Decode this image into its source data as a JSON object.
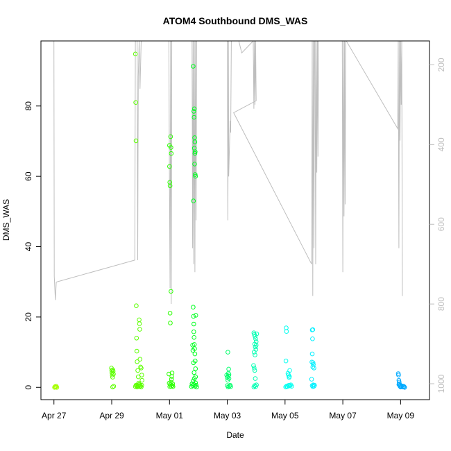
{
  "chart_data": {
    "type": "scatter",
    "title": "ATOM4 Southbound DMS_WAS",
    "xlabel": "Date",
    "ylabel": "DMS_WAS",
    "x_ticks": [
      {
        "label": "Apr 27",
        "day": 0
      },
      {
        "label": "Apr 29",
        "day": 2
      },
      {
        "label": "May 01",
        "day": 4
      },
      {
        "label": "May 03",
        "day": 6
      },
      {
        "label": "May 05",
        "day": 8
      },
      {
        "label": "May 07",
        "day": 10
      },
      {
        "label": "May 09",
        "day": 12
      }
    ],
    "xlim": [
      -0.45,
      13.0
    ],
    "ylim": [
      -3.5,
      98.5
    ],
    "y_ticks": [
      0,
      20,
      40,
      60,
      80
    ],
    "y2_ticks": [
      200,
      400,
      600,
      800,
      1000
    ],
    "y2lim": [
      1040,
      140
    ],
    "marker": "open-circle",
    "series": [
      {
        "color": "#a6ff00",
        "points": [
          [
            0.02,
            0.0
          ],
          [
            0.04,
            0.2
          ],
          [
            0.06,
            0.1
          ],
          [
            0.08,
            0.3
          ],
          [
            0.1,
            0.0
          ]
        ]
      },
      {
        "color": "#5cff00",
        "points": [
          [
            1.99,
            5.5
          ],
          [
            2.0,
            4.8
          ],
          [
            2.01,
            4.2
          ],
          [
            2.02,
            3.5
          ],
          [
            2.03,
            2.9
          ],
          [
            2.04,
            5.0
          ],
          [
            2.05,
            4.6
          ],
          [
            2.06,
            3.8
          ],
          [
            2.03,
            0.1
          ],
          [
            2.07,
            0.3
          ],
          [
            2.82,
            0.2
          ],
          [
            2.84,
            0.6
          ],
          [
            2.86,
            0.4
          ],
          [
            2.88,
            0.1
          ],
          [
            2.9,
            0.5
          ],
          [
            2.92,
            0.3
          ],
          [
            2.94,
            0.8
          ],
          [
            2.96,
            0.2
          ],
          [
            2.98,
            0.7
          ],
          [
            3.0,
            0.4
          ],
          [
            3.02,
            0.1
          ],
          [
            3.04,
            0.6
          ],
          [
            2.82,
            94.8
          ],
          [
            2.83,
            81.0
          ],
          [
            2.84,
            70.1
          ],
          [
            2.85,
            23.2
          ],
          [
            2.86,
            14.0
          ],
          [
            2.87,
            10.3
          ],
          [
            2.88,
            7.3
          ],
          [
            2.9,
            4.8
          ],
          [
            2.92,
            3.0
          ],
          [
            2.93,
            1.2
          ],
          [
            2.95,
            19.2
          ],
          [
            2.96,
            18.1
          ],
          [
            2.97,
            16.5
          ],
          [
            2.98,
            8.0
          ],
          [
            3.0,
            5.8
          ],
          [
            3.02,
            5.5
          ],
          [
            3.04,
            3.5
          ],
          [
            3.05,
            2.0
          ]
        ]
      },
      {
        "color": "#2bff00",
        "points": [
          [
            3.98,
            3.8
          ],
          [
            4.0,
            68.8
          ],
          [
            4.0,
            62.8
          ],
          [
            4.01,
            58.3
          ],
          [
            4.02,
            57.3
          ],
          [
            4.02,
            21.1
          ],
          [
            4.03,
            18.3
          ],
          [
            4.04,
            71.3
          ],
          [
            4.05,
            68.2
          ],
          [
            4.06,
            66.5
          ],
          [
            4.05,
            27.3
          ],
          [
            4.01,
            0.2
          ],
          [
            4.03,
            0.8
          ],
          [
            4.05,
            1.5
          ],
          [
            4.07,
            2.3
          ],
          [
            4.08,
            3.1
          ],
          [
            4.09,
            4.1
          ],
          [
            4.1,
            0.5
          ],
          [
            4.11,
            1.0
          ],
          [
            4.12,
            0.2
          ],
          [
            3.99,
            1.2
          ],
          [
            4.06,
            0.3
          ]
        ]
      },
      {
        "color": "#00ff20",
        "points": [
          [
            4.82,
            91.3
          ],
          [
            4.84,
            78.5
          ],
          [
            4.85,
            76.8
          ],
          [
            4.83,
            53.0
          ],
          [
            4.86,
            79.2
          ],
          [
            4.87,
            71.0
          ],
          [
            4.88,
            69.8
          ],
          [
            4.86,
            68.0
          ],
          [
            4.89,
            67.0
          ],
          [
            4.88,
            66.5
          ],
          [
            4.87,
            63.5
          ],
          [
            4.89,
            60.5
          ],
          [
            4.9,
            60.0
          ],
          [
            4.82,
            22.8
          ],
          [
            4.83,
            20.2
          ],
          [
            4.84,
            18.0
          ],
          [
            4.84,
            15.8
          ],
          [
            4.85,
            14.2
          ],
          [
            4.86,
            12.2
          ],
          [
            4.87,
            11.0
          ],
          [
            4.88,
            9.5
          ],
          [
            4.89,
            7.5
          ],
          [
            4.9,
            5.3
          ],
          [
            4.9,
            3.0
          ],
          [
            4.76,
            0.2
          ],
          [
            4.78,
            1.0
          ],
          [
            4.8,
            0.5
          ],
          [
            4.82,
            1.8
          ],
          [
            4.84,
            0.8
          ],
          [
            4.86,
            2.5
          ],
          [
            4.88,
            0.3
          ],
          [
            4.9,
            1.3
          ],
          [
            4.92,
            0.6
          ],
          [
            4.94,
            0.1
          ],
          [
            4.8,
            12.0
          ],
          [
            4.81,
            10.5
          ],
          [
            4.83,
            7.0
          ],
          [
            4.85,
            4.2
          ],
          [
            4.91,
            20.5
          ]
        ]
      },
      {
        "color": "#00ff6a",
        "points": [
          [
            6.02,
            10.0
          ],
          [
            5.98,
            3.5
          ],
          [
            6.0,
            2.8
          ],
          [
            6.02,
            2.0
          ],
          [
            6.03,
            3.2
          ],
          [
            6.04,
            4.0
          ],
          [
            6.05,
            5.2
          ],
          [
            6.06,
            3.6
          ],
          [
            6.06,
            2.5
          ],
          [
            6.0,
            0.5
          ],
          [
            6.03,
            0.1
          ],
          [
            6.07,
            0.3
          ],
          [
            6.1,
            0.6
          ],
          [
            6.12,
            0.2
          ]
        ]
      },
      {
        "color": "#00ffb2",
        "points": [
          [
            6.92,
            15.5
          ],
          [
            6.94,
            15.0
          ],
          [
            6.96,
            14.5
          ],
          [
            6.98,
            13.8
          ],
          [
            7.0,
            13.0
          ],
          [
            6.95,
            12.3
          ],
          [
            6.97,
            11.5
          ],
          [
            6.99,
            10.8
          ],
          [
            6.93,
            10.0
          ],
          [
            6.96,
            9.2
          ],
          [
            6.91,
            6.2
          ],
          [
            6.93,
            5.5
          ],
          [
            6.95,
            4.8
          ],
          [
            6.97,
            2.5
          ],
          [
            6.95,
            0.5
          ],
          [
            6.98,
            0.2
          ],
          [
            7.01,
            0.7
          ],
          [
            7.02,
            15.2
          ],
          [
            7.0,
            12.0
          ],
          [
            6.92,
            0.1
          ]
        ]
      },
      {
        "color": "#00fff0",
        "points": [
          [
            8.04,
            16.9
          ],
          [
            8.05,
            15.9
          ],
          [
            8.03,
            7.5
          ],
          [
            8.1,
            4.0
          ],
          [
            8.12,
            3.5
          ],
          [
            8.14,
            2.8
          ],
          [
            8.15,
            3.1
          ],
          [
            8.16,
            4.8
          ],
          [
            8.02,
            0.1
          ],
          [
            8.05,
            0.3
          ],
          [
            8.08,
            0.2
          ],
          [
            8.11,
            0.5
          ],
          [
            8.14,
            0.6
          ],
          [
            8.17,
            0.4
          ],
          [
            8.2,
            0.7
          ],
          [
            8.23,
            0.3
          ]
        ]
      },
      {
        "color": "#00f0ff",
        "points": [
          [
            8.94,
            16.3
          ],
          [
            8.96,
            16.4
          ],
          [
            8.95,
            13.8
          ],
          [
            8.94,
            9.5
          ],
          [
            8.93,
            7.2
          ],
          [
            8.97,
            7.0
          ],
          [
            8.98,
            6.5
          ],
          [
            8.96,
            5.8
          ],
          [
            9.0,
            5.5
          ],
          [
            8.92,
            2.3
          ],
          [
            8.94,
            0.5
          ],
          [
            8.96,
            0.2
          ],
          [
            8.98,
            0.7
          ],
          [
            9.0,
            0.3
          ],
          [
            9.02,
            0.6
          ]
        ]
      },
      {
        "color": "#00aaff",
        "points": [
          [
            11.92,
            3.9
          ],
          [
            11.93,
            3.5
          ],
          [
            11.94,
            2.0
          ],
          [
            11.95,
            1.5
          ],
          [
            11.96,
            1.0
          ],
          [
            11.97,
            0.6
          ],
          [
            11.98,
            0.3
          ],
          [
            12.0,
            0.1
          ],
          [
            12.02,
            0.2
          ],
          [
            12.05,
            0.4
          ],
          [
            12.08,
            0.1
          ],
          [
            12.1,
            0.3
          ],
          [
            12.12,
            0.2
          ],
          [
            12.14,
            0.0
          ],
          [
            11.94,
            0.8
          ]
        ]
      }
    ],
    "altitude_line": {
      "color": "#bebebe",
      "points": [
        [
          0.0,
          140
        ],
        [
          0.01,
          730
        ],
        [
          0.05,
          790
        ],
        [
          0.08,
          745
        ],
        [
          2.8,
          690
        ],
        [
          2.82,
          140
        ],
        [
          2.88,
          140
        ],
        [
          2.9,
          690
        ],
        [
          2.92,
          230
        ],
        [
          2.95,
          140
        ],
        [
          2.98,
          260
        ],
        [
          3.02,
          140
        ],
        [
          3.98,
          140
        ],
        [
          4.0,
          520
        ],
        [
          4.02,
          760
        ],
        [
          4.04,
          140
        ],
        [
          4.06,
          800
        ],
        [
          4.08,
          140
        ],
        [
          4.78,
          140
        ],
        [
          4.8,
          660
        ],
        [
          4.82,
          140
        ],
        [
          4.84,
          700
        ],
        [
          4.86,
          140
        ],
        [
          4.88,
          720
        ],
        [
          4.9,
          140
        ],
        [
          4.92,
          590
        ],
        [
          4.94,
          140
        ],
        [
          5.0,
          140
        ],
        [
          5.9,
          140
        ],
        [
          6.0,
          140
        ],
        [
          6.02,
          590
        ],
        [
          6.04,
          140
        ],
        [
          6.05,
          480
        ],
        [
          6.1,
          340
        ],
        [
          6.12,
          370
        ],
        [
          6.14,
          140
        ],
        [
          6.4,
          140
        ],
        [
          6.5,
          170
        ],
        [
          6.9,
          140
        ],
        [
          6.92,
          310
        ],
        [
          6.94,
          140
        ],
        [
          6.96,
          300
        ],
        [
          6.98,
          140
        ],
        [
          7.0,
          290
        ],
        [
          6.22,
          320
        ],
        [
          8.92,
          700
        ],
        [
          8.94,
          140
        ],
        [
          8.96,
          780
        ],
        [
          8.98,
          140
        ],
        [
          9.0,
          660
        ],
        [
          9.02,
          140
        ],
        [
          9.04,
          140
        ],
        [
          9.06,
          700
        ],
        [
          9.08,
          140
        ],
        [
          9.1,
          470
        ],
        [
          9.12,
          140
        ],
        [
          9.14,
          430
        ],
        [
          9.16,
          140
        ],
        [
          9.98,
          140
        ],
        [
          10.0,
          720
        ],
        [
          10.02,
          140
        ],
        [
          10.04,
          580
        ],
        [
          10.06,
          140
        ],
        [
          10.08,
          550
        ],
        [
          10.1,
          140
        ],
        [
          10.12,
          140
        ],
        [
          11.9,
          360
        ],
        [
          11.92,
          140
        ],
        [
          11.94,
          660
        ],
        [
          11.96,
          140
        ],
        [
          11.98,
          390
        ],
        [
          12.0,
          140
        ],
        [
          12.02,
          300
        ],
        [
          12.04,
          140
        ],
        [
          12.06,
          780
        ]
      ]
    }
  }
}
